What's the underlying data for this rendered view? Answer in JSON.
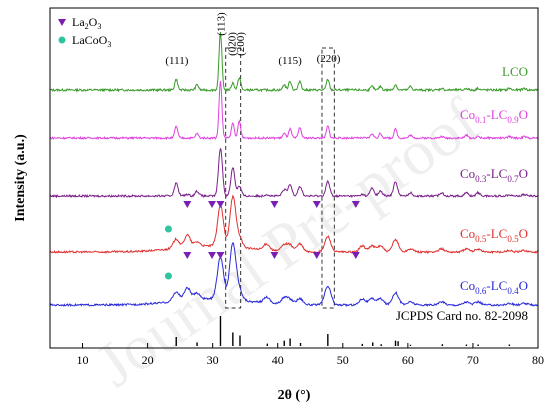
{
  "chart_data": {
    "type": "line",
    "xlabel": "2θ (°)",
    "ylabel": "Intensity (a.u.)",
    "xlim": [
      5,
      80
    ],
    "xticks": [
      10,
      20,
      30,
      40,
      50,
      60,
      70,
      80
    ],
    "yticks_shown": false,
    "legend": {
      "placement": "top-left",
      "entries": [
        {
          "marker": "triangle",
          "color": "#7a1fb3",
          "label_main": "La",
          "label_sub1": "2",
          "label_mid": "O",
          "label_sub2": "3"
        },
        {
          "marker": "circle",
          "color": "#2ec4a0",
          "label_main": "LaCo",
          "label_sub1": "",
          "label_mid": "O",
          "label_sub2": "3"
        }
      ]
    },
    "peak_labels": [
      {
        "label": "(111)",
        "x": 24.5
      },
      {
        "label": "(113)",
        "x": 31.2
      },
      {
        "label": "(020)",
        "x": 32.9
      },
      {
        "label": "(200)",
        "x": 34.2
      },
      {
        "label": "(115)",
        "x": 41.9
      },
      {
        "label": "(220)",
        "x": 47.8
      }
    ],
    "dashed_boxes": [
      {
        "x_range": [
          32.0,
          34.3
        ]
      },
      {
        "x_range": [
          46.8,
          48.7
        ]
      }
    ],
    "peak_positions": [
      24.4,
      26.1,
      27.6,
      31.2,
      33.1,
      34.1,
      38.3,
      41.0,
      41.9,
      43.4,
      47.7,
      53.0,
      54.5,
      55.8,
      58.1,
      60.4,
      65.2,
      69.0,
      70.8,
      75.6,
      77.9
    ],
    "series": [
      {
        "name_parts": [
          "LCO",
          "",
          "",
          "",
          ""
        ],
        "color": "#3a9a2a",
        "intensities": [
          6,
          0,
          3,
          32,
          4,
          7,
          0,
          3,
          5,
          5,
          6,
          0,
          2,
          2,
          3,
          2,
          1,
          1,
          1,
          1,
          1
        ],
        "la2o3_markers": [],
        "lacoo3_markers": []
      },
      {
        "name_parts": [
          "Co",
          "0.1",
          "-LC",
          "0.9",
          "O"
        ],
        "color": "#e040e0",
        "intensities": [
          8,
          0,
          3,
          38,
          10,
          11,
          0,
          3,
          6,
          7,
          8,
          0,
          3,
          3,
          6,
          2,
          1,
          2,
          1,
          1,
          1
        ],
        "la2o3_markers": [],
        "lacoo3_markers": []
      },
      {
        "name_parts": [
          "Co",
          "0.3",
          "-LC",
          "0.7",
          "O"
        ],
        "color": "#7a1f8a",
        "intensities": [
          8,
          1,
          3,
          30,
          18,
          6,
          1,
          4,
          7,
          6,
          9,
          1,
          5,
          3,
          9,
          2,
          2,
          2,
          2,
          1,
          1
        ],
        "la2o3_markers": [],
        "lacoo3_markers": []
      },
      {
        "name_parts": [
          "Co",
          "0.5",
          "-LC",
          "0.5",
          "O"
        ],
        "color": "#e03030",
        "intensities": [
          6,
          8,
          3,
          26,
          32,
          6,
          4,
          4,
          4,
          5,
          10,
          4,
          4,
          4,
          8,
          2,
          2,
          2,
          2,
          1,
          1
        ],
        "la2o3_markers": [
          26.1,
          29.9,
          31.2,
          39.5,
          46.0,
          52.0
        ],
        "lacoo3_markers": [
          23.2
        ]
      },
      {
        "name_parts": [
          "Co",
          "0.6",
          "-LC",
          "0.4",
          "O"
        ],
        "color": "#2828d8",
        "intensities": [
          6,
          8,
          4,
          27,
          36,
          6,
          4,
          4,
          3,
          4,
          12,
          4,
          4,
          4,
          8,
          2,
          2,
          2,
          2,
          1,
          1
        ],
        "la2o3_markers": [
          26.1,
          29.9,
          31.2,
          39.5,
          46.0,
          52.0
        ],
        "lacoo3_markers": [
          23.2
        ]
      }
    ],
    "reference": {
      "label": "JCPDS Card no. 82-2098",
      "sticks": [
        {
          "x": 24.4,
          "h": 0.3
        },
        {
          "x": 27.6,
          "h": 0.12
        },
        {
          "x": 31.2,
          "h": 1.0
        },
        {
          "x": 33.1,
          "h": 0.45
        },
        {
          "x": 34.2,
          "h": 0.35
        },
        {
          "x": 38.4,
          "h": 0.08
        },
        {
          "x": 41.0,
          "h": 0.18
        },
        {
          "x": 41.9,
          "h": 0.25
        },
        {
          "x": 43.5,
          "h": 0.1
        },
        {
          "x": 47.7,
          "h": 0.4
        },
        {
          "x": 53.0,
          "h": 0.07
        },
        {
          "x": 54.6,
          "h": 0.12
        },
        {
          "x": 55.9,
          "h": 0.06
        },
        {
          "x": 58.1,
          "h": 0.18
        },
        {
          "x": 58.5,
          "h": 0.16
        },
        {
          "x": 60.4,
          "h": 0.04
        },
        {
          "x": 65.3,
          "h": 0.06
        },
        {
          "x": 69.0,
          "h": 0.05
        },
        {
          "x": 70.8,
          "h": 0.05
        },
        {
          "x": 75.6,
          "h": 0.05
        }
      ]
    }
  },
  "watermark_text": "Journal Pre-proof"
}
